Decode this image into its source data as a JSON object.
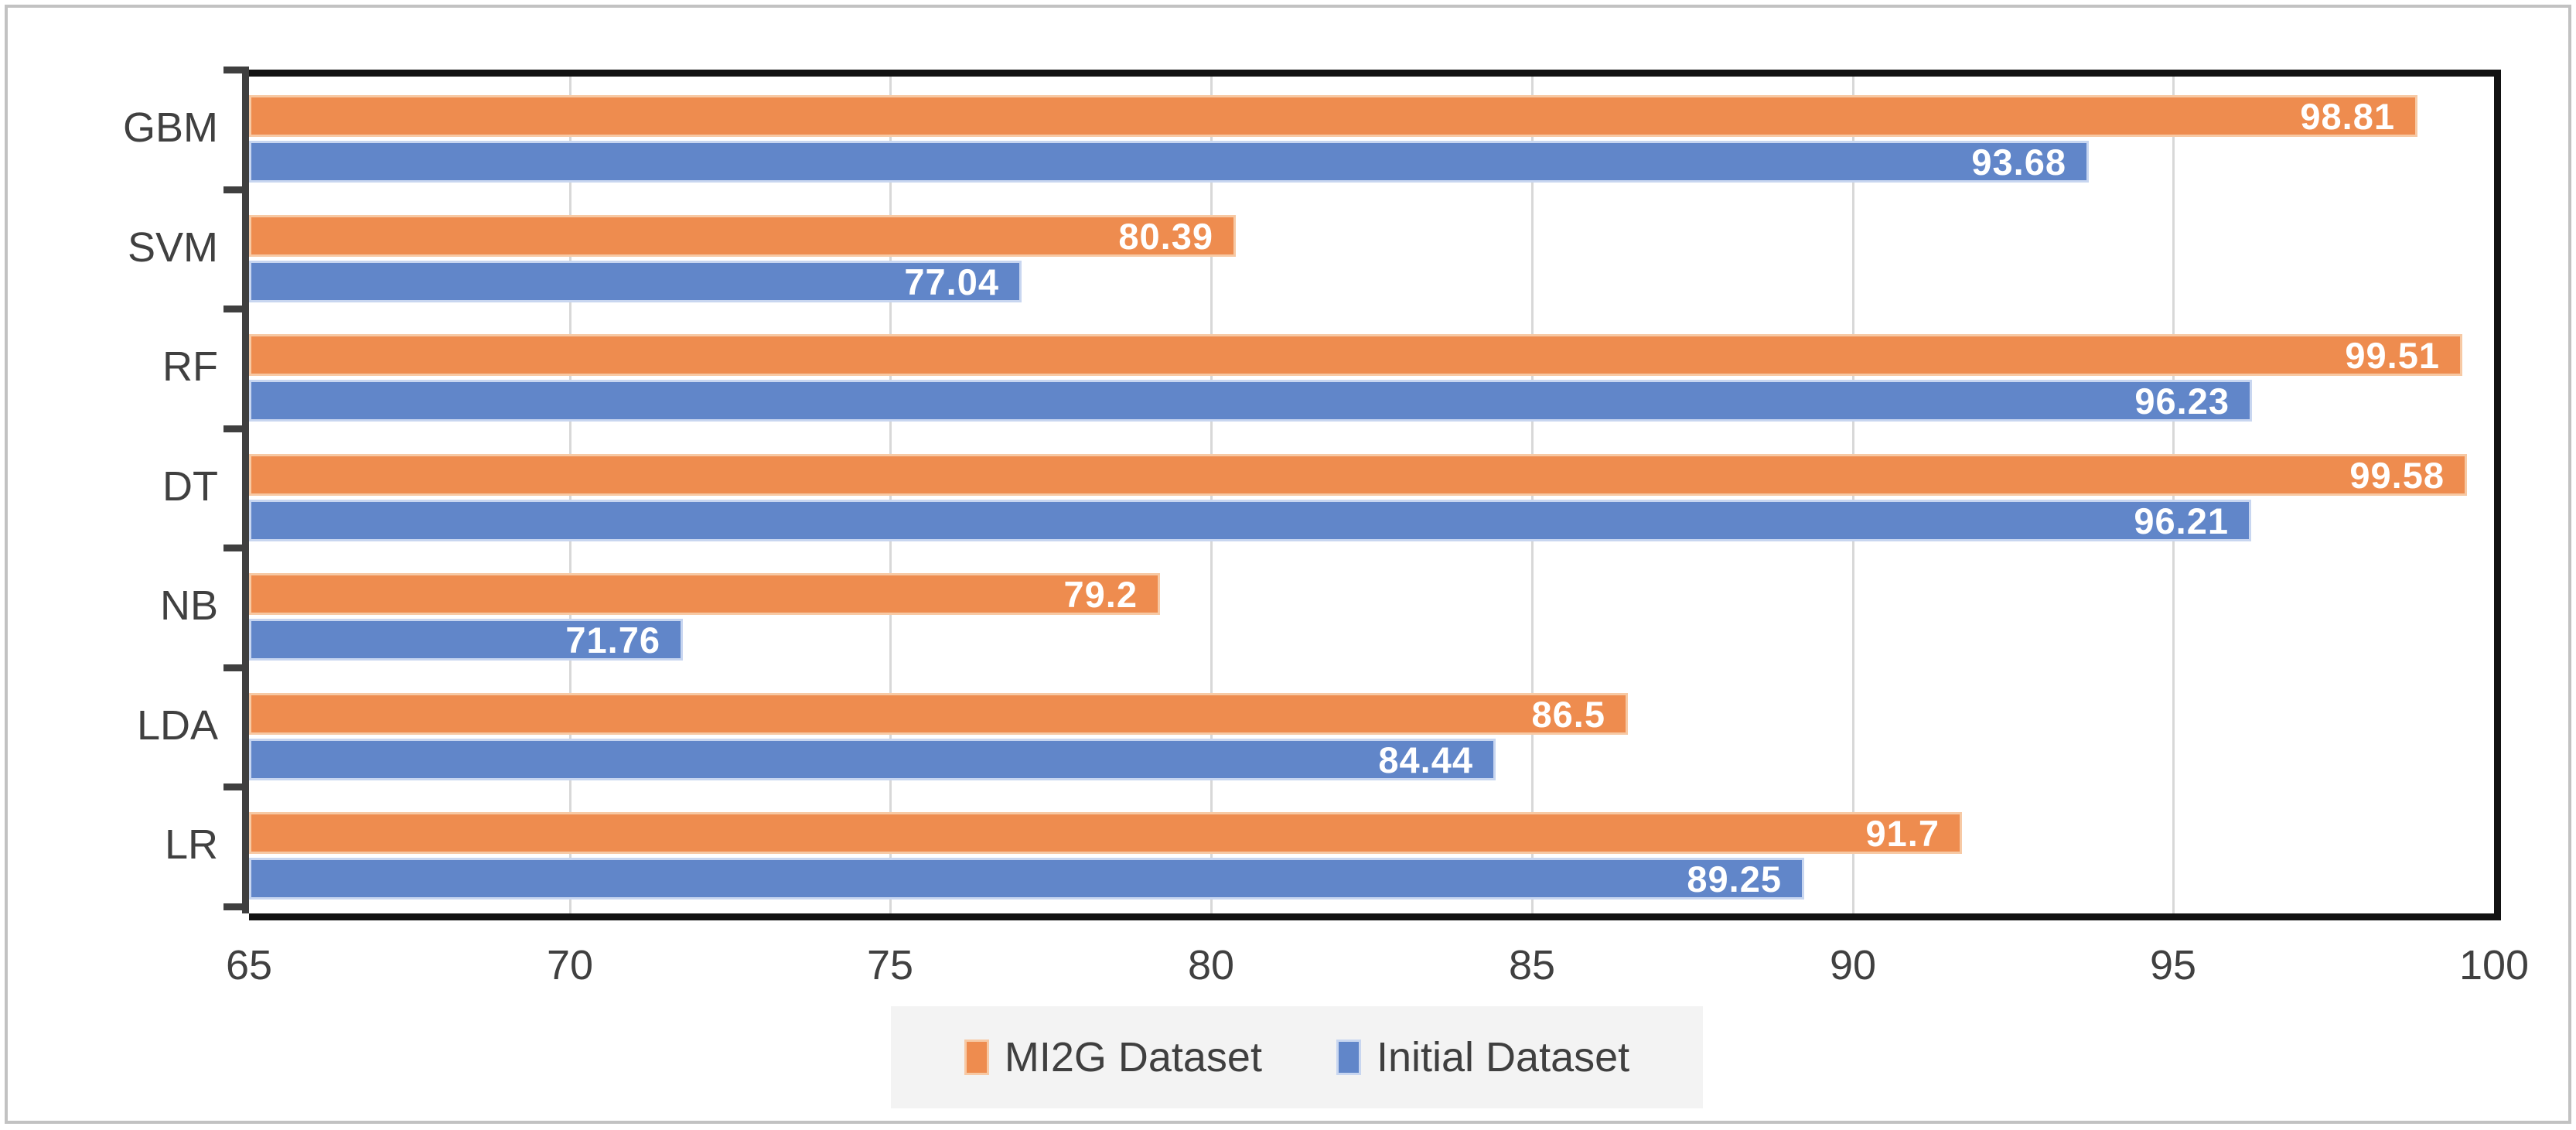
{
  "chart_data": {
    "type": "bar",
    "orientation": "horizontal",
    "title": "",
    "xlabel": "",
    "ylabel": "",
    "categories": [
      "GBM",
      "SVM",
      "RF",
      "DT",
      "NB",
      "LDA",
      "LR"
    ],
    "series": [
      {
        "name": "MI2G Dataset",
        "color": "#ee8c4f",
        "border_color": "#f7c9a4",
        "values": [
          98.81,
          80.39,
          99.51,
          99.58,
          79.2,
          86.5,
          91.7
        ],
        "value_labels": [
          "98.81",
          "80.39",
          "99.51",
          "99.58",
          "79.2",
          "86.5",
          "91.7"
        ]
      },
      {
        "name": "Initial Dataset",
        "color": "#6186c9",
        "border_color": "#c8d6f0",
        "values": [
          93.68,
          77.04,
          96.23,
          96.21,
          71.76,
          84.44,
          89.25
        ],
        "value_labels": [
          "93.68",
          "77.04",
          "96.23",
          "96.21",
          "71.76",
          "84.44",
          "89.25"
        ]
      }
    ],
    "xlim": [
      65,
      100
    ],
    "xticks": [
      65,
      70,
      75,
      80,
      85,
      90,
      95,
      100
    ],
    "xtick_labels": [
      "65",
      "70",
      "75",
      "80",
      "85",
      "90",
      "95",
      "100"
    ],
    "grid": true,
    "legend_position": "bottom",
    "colors": {
      "gridline": "#d8d8d8",
      "axis_line": "#3f3f3f",
      "plot_border": "#121212",
      "tick_text": "#404040",
      "data_label_text": "#ffffff",
      "legend_background": "#f3f3f3",
      "figure_border": "#c2c2c2",
      "background": "#ffffff"
    }
  }
}
